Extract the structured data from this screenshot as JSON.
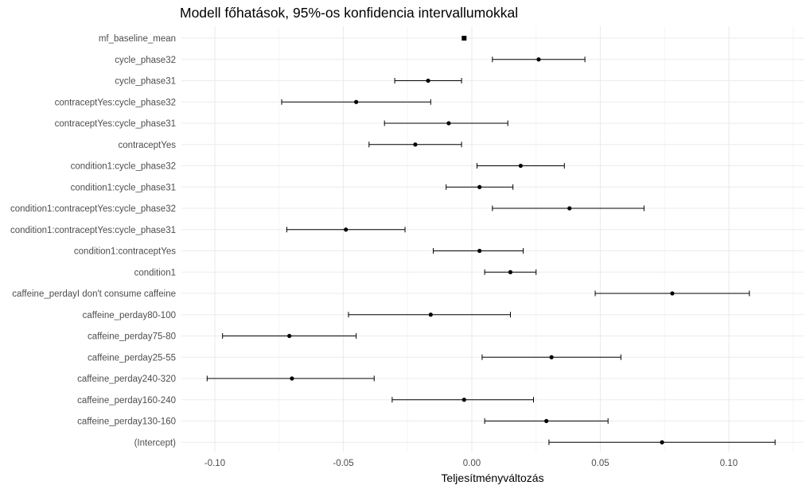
{
  "chart_data": {
    "type": "forest",
    "title": "Modell főhatások, 95%-os konfidencia intervallumokkal",
    "xlabel": "Teljesítményváltozás",
    "ylabel": "",
    "xlim": [
      -0.11,
      0.127
    ],
    "xticks": [
      -0.1,
      -0.05,
      0.0,
      0.05,
      0.1
    ],
    "xtick_labels": [
      "-0.10",
      "-0.05",
      "0.00",
      "0.05",
      "0.10"
    ],
    "grid": true,
    "terms": [
      {
        "label": "mf_baseline_mean",
        "estimate": -0.003,
        "lower": -0.003,
        "upper": -0.003
      },
      {
        "label": "cycle_phase32",
        "estimate": 0.026,
        "lower": 0.008,
        "upper": 0.044
      },
      {
        "label": "cycle_phase31",
        "estimate": -0.017,
        "lower": -0.03,
        "upper": -0.004
      },
      {
        "label": "contraceptYes:cycle_phase32",
        "estimate": -0.045,
        "lower": -0.074,
        "upper": -0.016
      },
      {
        "label": "contraceptYes:cycle_phase31",
        "estimate": -0.009,
        "lower": -0.034,
        "upper": 0.014
      },
      {
        "label": "contraceptYes",
        "estimate": -0.022,
        "lower": -0.04,
        "upper": -0.004
      },
      {
        "label": "condition1:cycle_phase32",
        "estimate": 0.019,
        "lower": 0.002,
        "upper": 0.036
      },
      {
        "label": "condition1:cycle_phase31",
        "estimate": 0.003,
        "lower": -0.01,
        "upper": 0.016
      },
      {
        "label": "condition1:contraceptYes:cycle_phase32",
        "estimate": 0.038,
        "lower": 0.008,
        "upper": 0.067
      },
      {
        "label": "condition1:contraceptYes:cycle_phase31",
        "estimate": -0.049,
        "lower": -0.072,
        "upper": -0.026
      },
      {
        "label": "condition1:contraceptYes",
        "estimate": 0.003,
        "lower": -0.015,
        "upper": 0.02
      },
      {
        "label": "condition1",
        "estimate": 0.015,
        "lower": 0.005,
        "upper": 0.025
      },
      {
        "label": "caffeine_perdayI don't consume caffeine",
        "estimate": 0.078,
        "lower": 0.048,
        "upper": 0.108
      },
      {
        "label": "caffeine_perday80-100",
        "estimate": -0.016,
        "lower": -0.048,
        "upper": 0.015
      },
      {
        "label": "caffeine_perday75-80",
        "estimate": -0.071,
        "lower": -0.097,
        "upper": -0.045
      },
      {
        "label": "caffeine_perday25-55",
        "estimate": 0.031,
        "lower": 0.004,
        "upper": 0.058
      },
      {
        "label": "caffeine_perday240-320",
        "estimate": -0.07,
        "lower": -0.103,
        "upper": -0.038
      },
      {
        "label": "caffeine_perday160-240",
        "estimate": -0.003,
        "lower": -0.031,
        "upper": 0.024
      },
      {
        "label": "caffeine_perday130-160",
        "estimate": 0.029,
        "lower": 0.005,
        "upper": 0.053
      },
      {
        "label": "(Intercept)",
        "estimate": 0.074,
        "lower": 0.03,
        "upper": 0.118
      }
    ],
    "colors": {
      "point": "#000000",
      "errorbar": "#000000",
      "grid_major": "#ebebeb",
      "grid_minor": "#f5f5f5",
      "tick_text": "#4d4d4d"
    }
  }
}
